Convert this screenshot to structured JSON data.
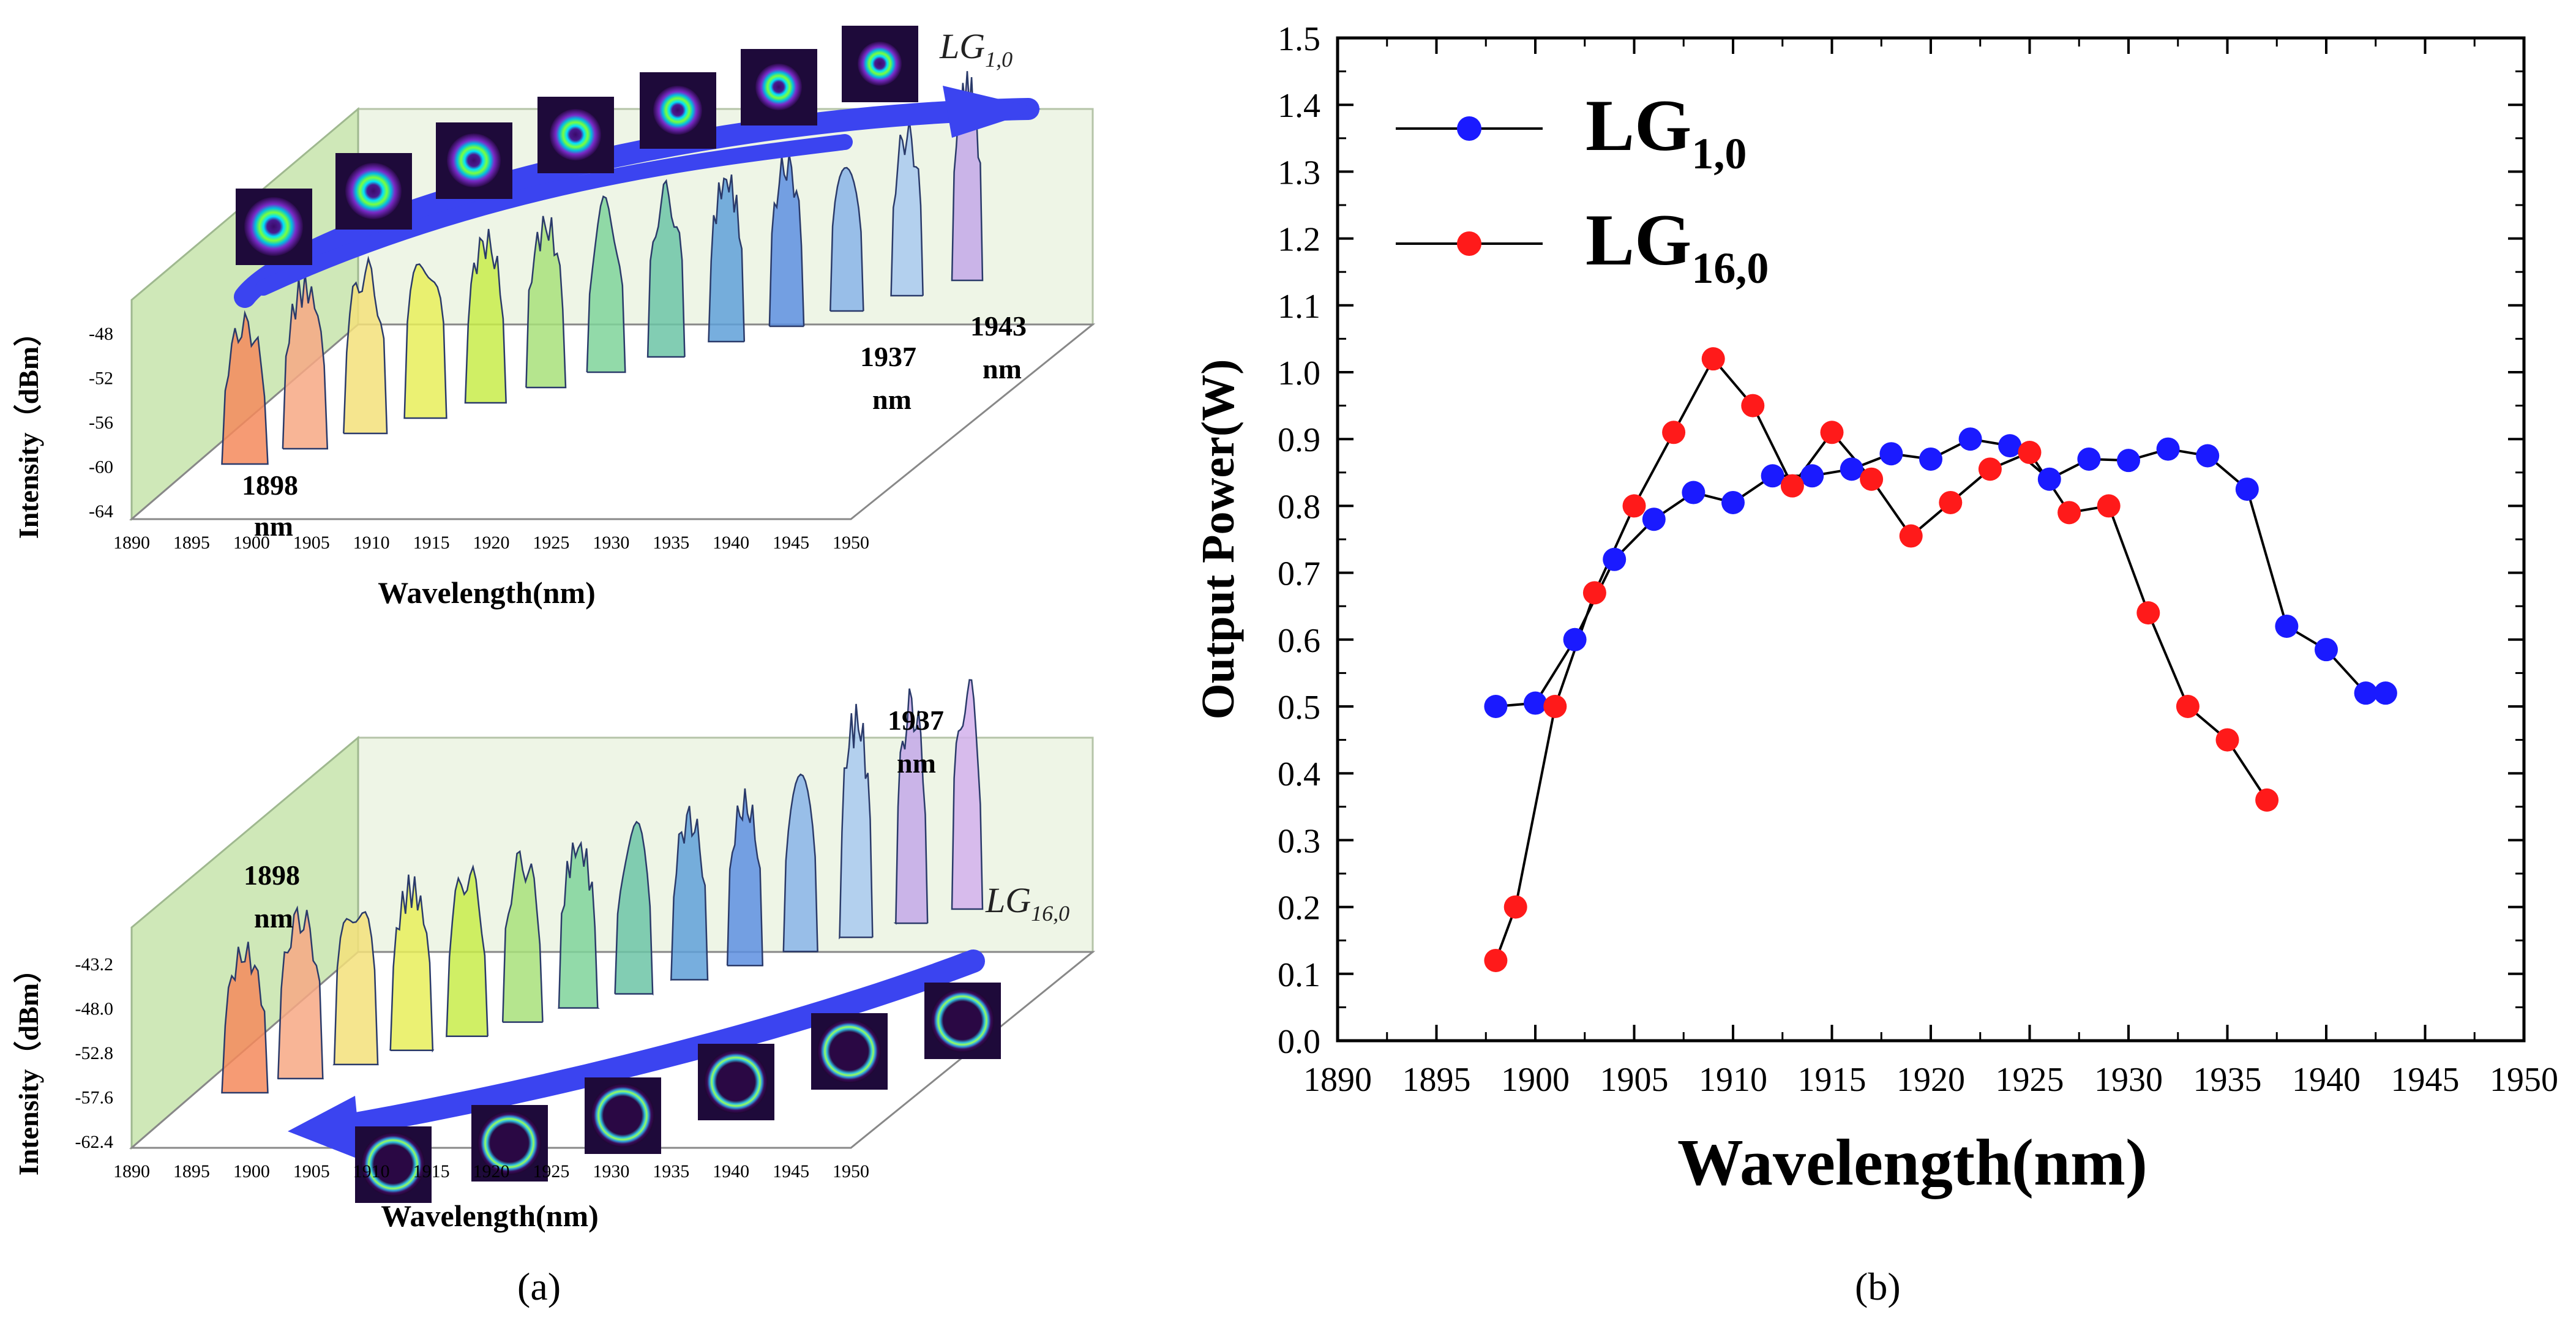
{
  "chart_data": [
    {
      "panel": "(a)",
      "type": "3d-spectrum-waterfall",
      "subplots": [
        {
          "mode_label_base": "LG",
          "mode_label_sub": "1,0",
          "xlabel": "Wavelength(nm)",
          "ylabel": "Intensity（dBm）",
          "x_ticks": [
            "1890",
            "1895",
            "1900",
            "1905",
            "1910",
            "1915",
            "1920",
            "1925",
            "1930",
            "1935",
            "1940",
            "1945",
            "1950"
          ],
          "y_ticks": [
            "-48",
            "-52",
            "-56",
            "-60",
            "-64"
          ],
          "annotations": [
            {
              "text": "1898",
              "sub": "nm"
            },
            {
              "text": "1937",
              "sub": "nm"
            },
            {
              "text": "1943",
              "sub": "nm"
            }
          ],
          "spectra_peak_wavelengths": [
            1898,
            1902,
            1906,
            1910,
            1914,
            1918,
            1922,
            1926,
            1930,
            1934,
            1937,
            1940,
            1943
          ]
        },
        {
          "mode_label_base": "LG",
          "mode_label_sub": "16,0",
          "xlabel": "Wavelength(nm)",
          "ylabel": "Intensity（dBm）",
          "x_ticks": [
            "1890",
            "1895",
            "1900",
            "1905",
            "1910",
            "1915",
            "1920",
            "1925",
            "1930",
            "1935",
            "1940",
            "1945",
            "1950"
          ],
          "y_ticks": [
            "-43.2",
            "-48.0",
            "-52.8",
            "-57.6",
            "-62.4"
          ],
          "annotations": [
            {
              "text": "1898",
              "sub": "nm"
            },
            {
              "text": "1937",
              "sub": "nm"
            }
          ],
          "spectra_peak_wavelengths": [
            1898,
            1901,
            1904,
            1907,
            1910,
            1913,
            1916,
            1919,
            1922,
            1925,
            1928,
            1931,
            1934,
            1937
          ]
        }
      ]
    },
    {
      "panel": "(b)",
      "type": "line",
      "xlabel": "Wavelength(nm)",
      "ylabel": "Output Power(W)",
      "xlim": [
        1890,
        1950
      ],
      "ylim": [
        0,
        1.5
      ],
      "x_ticks": [
        1890,
        1895,
        1900,
        1905,
        1910,
        1915,
        1920,
        1925,
        1930,
        1935,
        1940,
        1945,
        1950
      ],
      "y_ticks": [
        0.0,
        0.1,
        0.2,
        0.3,
        0.4,
        0.5,
        0.6,
        0.7,
        0.8,
        0.9,
        1.0,
        1.1,
        1.2,
        1.3,
        1.4,
        1.5
      ],
      "legend_position": "top-left",
      "series": [
        {
          "name": "LG",
          "name_sub": "1,0",
          "color": "#1a1aff",
          "x": [
            1898,
            1900,
            1902,
            1904,
            1906,
            1908,
            1910,
            1912,
            1914,
            1916,
            1918,
            1920,
            1922,
            1924,
            1926,
            1928,
            1930,
            1932,
            1934,
            1936,
            1938,
            1940,
            1942,
            1943
          ],
          "y": [
            0.5,
            0.505,
            0.6,
            0.72,
            0.78,
            0.82,
            0.805,
            0.845,
            0.845,
            0.855,
            0.878,
            0.87,
            0.9,
            0.89,
            0.84,
            0.87,
            0.868,
            0.885,
            0.875,
            0.825,
            0.62,
            0.585,
            0.52,
            0.52
          ]
        },
        {
          "name": "LG",
          "name_sub": "16,0",
          "color": "#ff1a1a",
          "x": [
            1898,
            1899,
            1901,
            1903,
            1905,
            1907,
            1909,
            1911,
            1913,
            1915,
            1917,
            1919,
            1921,
            1923,
            1925,
            1927,
            1929,
            1931,
            1933,
            1935,
            1937
          ],
          "y": [
            0.12,
            0.2,
            0.5,
            0.67,
            0.8,
            0.91,
            1.02,
            0.95,
            0.83,
            0.91,
            0.84,
            0.755,
            0.805,
            0.855,
            0.88,
            0.79,
            0.8,
            0.64,
            0.5,
            0.45,
            0.36
          ]
        }
      ]
    }
  ],
  "captions": {
    "a": "(a)",
    "b": "(b)"
  }
}
